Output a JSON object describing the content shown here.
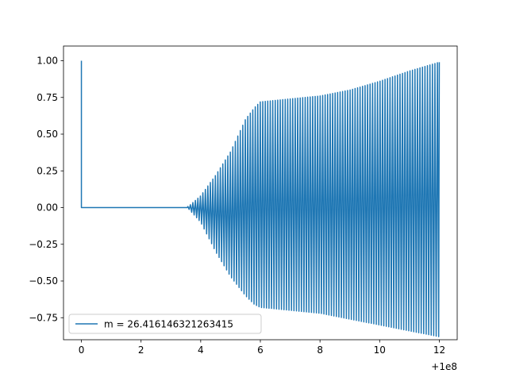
{
  "chart_data": {
    "type": "line",
    "title": "",
    "xlabel": "",
    "ylabel": "",
    "x_offset_label": "+1e8",
    "xlim": [
      -0.6,
      12.6
    ],
    "ylim": [
      -0.9,
      1.1
    ],
    "x_ticks": [
      0,
      2,
      4,
      6,
      8,
      10,
      12
    ],
    "x_tick_labels": [
      "0",
      "2",
      "4",
      "6",
      "8",
      "10",
      "12"
    ],
    "y_ticks": [
      -0.75,
      -0.5,
      -0.25,
      0.0,
      0.25,
      0.5,
      0.75,
      1.0
    ],
    "y_tick_labels": [
      "−0.75",
      "−0.50",
      "−0.25",
      "0.00",
      "0.25",
      "0.50",
      "0.75",
      "1.00"
    ],
    "grid": false,
    "legend_position": "lower-left",
    "colors": {
      "series": "#1f77b4",
      "axes": "#000000",
      "legend_border": "#cccccc"
    },
    "series": [
      {
        "name": "m = 26.416146321263415",
        "color": "#1f77b4",
        "description_points": {
          "x": [
            0,
            0.05,
            3.5,
            3.6,
            4.0,
            4.5,
            5.0,
            5.5,
            5.8,
            6.0,
            7.0,
            8.0,
            9.0,
            10.0,
            11.0,
            12.0
          ],
          "y_upper": [
            1.0,
            0.0,
            0.0,
            0.01,
            0.08,
            0.22,
            0.38,
            0.6,
            0.68,
            0.72,
            0.74,
            0.76,
            0.8,
            0.86,
            0.93,
            0.99
          ],
          "y_lower": [
            1.0,
            0.0,
            0.0,
            -0.01,
            -0.1,
            -0.3,
            -0.47,
            -0.6,
            -0.66,
            -0.68,
            -0.7,
            -0.72,
            -0.76,
            -0.8,
            -0.84,
            -0.88
          ]
        }
      }
    ]
  }
}
